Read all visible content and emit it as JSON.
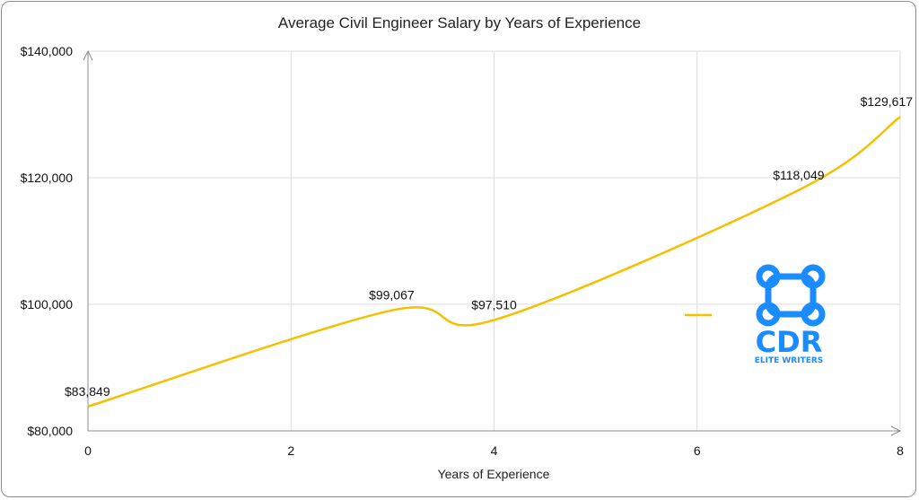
{
  "chart_data": {
    "type": "line",
    "title": "Average Civil Engineer Salary by Years of Experience",
    "xlabel": "Years of Experience",
    "ylabel": "",
    "xlim": [
      0,
      8
    ],
    "ylim": [
      80000,
      140000
    ],
    "x_ticks": [
      0,
      2,
      4,
      6,
      8
    ],
    "x_tick_labels": [
      "0",
      "2",
      "4",
      "6",
      "8"
    ],
    "y_ticks": [
      80000,
      100000,
      120000,
      140000
    ],
    "y_tick_labels": [
      "$80,000",
      "$100,000",
      "$120,000",
      "$140,000"
    ],
    "grid": true,
    "legend": "right",
    "series": [
      {
        "name": "",
        "color": "#f5c000",
        "x": [
          0,
          3,
          4,
          7,
          8
        ],
        "y": [
          83849,
          99067,
          97510,
          118049,
          129617
        ],
        "labels": [
          "$83,849",
          "$99,067",
          "$97,510",
          "$118,049",
          "$129,617"
        ]
      }
    ]
  },
  "watermark": {
    "text": "CDR",
    "subtext": "ELITE WRITERS",
    "color": "#1a8cff",
    "icon": "command-key-icon"
  }
}
